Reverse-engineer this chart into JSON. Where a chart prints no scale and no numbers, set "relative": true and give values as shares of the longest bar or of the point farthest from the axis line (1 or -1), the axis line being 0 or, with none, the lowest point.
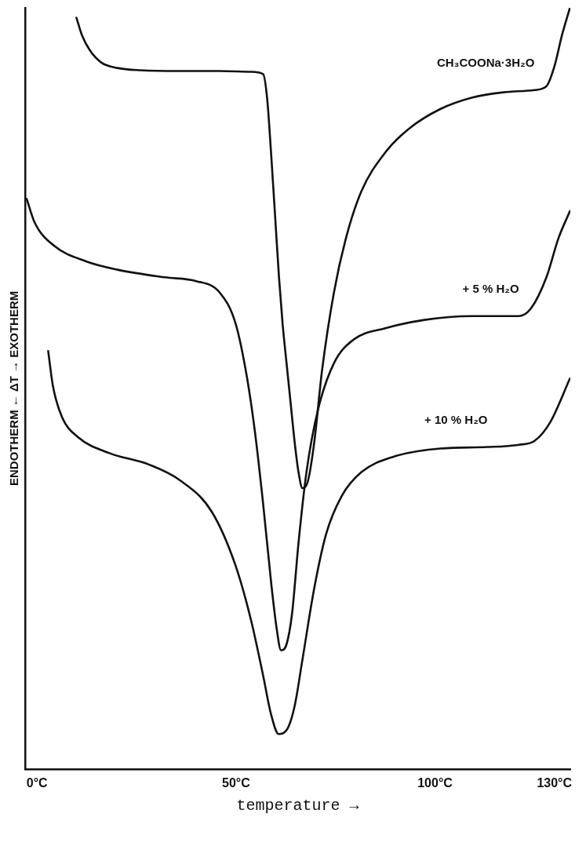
{
  "chart_data": {
    "type": "line",
    "relative": true,
    "xlabel": "temperature →",
    "ylabel": "ENDOTHERM ← ΔT → EXOTHERM",
    "xlim": [
      -3,
      134
    ],
    "xticks": [
      {
        "value": 0,
        "label": "0°C"
      },
      {
        "value": 50,
        "label": "50°C"
      },
      {
        "value": 100,
        "label": "100°C"
      },
      {
        "value": 130,
        "label": "130°C"
      }
    ],
    "grid": false,
    "legend": false,
    "marker": "none",
    "line_style": "solid",
    "series": [
      {
        "name": "CH₃COONa·3H₂O",
        "color": "#111111",
        "x": [
          9.9,
          11.3,
          13.3,
          16.2,
          20.2,
          26.1,
          36.0,
          45.9,
          53.8,
          56.8,
          57.8,
          58.8,
          59.8,
          60.8,
          61.7,
          62.7,
          63.7,
          64.7,
          65.7,
          66.7,
          68.1,
          69.7,
          71.6,
          74.6,
          77.6,
          81.5,
          87.5,
          93.4,
          101.3,
          109.2,
          117.2,
          125.0,
          128.0,
          130.0,
          131.9,
          133.9
        ],
        "values": [
          0.987,
          0.964,
          0.944,
          0.928,
          0.921,
          0.918,
          0.917,
          0.917,
          0.916,
          0.913,
          0.882,
          0.81,
          0.728,
          0.646,
          0.585,
          0.533,
          0.482,
          0.431,
          0.39,
          0.369,
          0.379,
          0.431,
          0.523,
          0.626,
          0.697,
          0.759,
          0.81,
          0.841,
          0.867,
          0.882,
          0.889,
          0.892,
          0.897,
          0.923,
          0.964,
          1
        ]
      },
      {
        "name": "+ 5 % H₂O",
        "color": "#111111",
        "x": [
          -2.6,
          -0.6,
          4.4,
          12.3,
          20.2,
          32.1,
          40.0,
          45.9,
          49.9,
          52.8,
          54.8,
          56.8,
          58.8,
          60.2,
          61.3,
          62.7,
          64.1,
          65.7,
          67.7,
          70.6,
          74.6,
          79.5,
          87.5,
          97.3,
          109.2,
          121.1,
          124.1,
          128.0,
          131.0,
          133.9
        ],
        "values": [
          0.749,
          0.718,
          0.687,
          0.667,
          0.656,
          0.646,
          0.641,
          0.626,
          0.585,
          0.513,
          0.441,
          0.349,
          0.246,
          0.185,
          0.156,
          0.164,
          0.205,
          0.297,
          0.39,
          0.472,
          0.533,
          0.564,
          0.579,
          0.59,
          0.595,
          0.595,
          0.605,
          0.646,
          0.697,
          0.733
        ]
      },
      {
        "name": "+ 10 % H₂O",
        "color": "#111111",
        "x": [
          2.8,
          4.0,
          6.3,
          10.3,
          18.2,
          28.1,
          36.0,
          43.9,
          49.9,
          53.8,
          56.8,
          58.8,
          60.7,
          62.7,
          64.7,
          66.7,
          69.6,
          72.6,
          76.6,
          81.5,
          89.4,
          101.3,
          113.2,
          121.1,
          125.0,
          129.0,
          133.9
        ],
        "values": [
          0.549,
          0.503,
          0.462,
          0.436,
          0.415,
          0.4,
          0.379,
          0.338,
          0.267,
          0.195,
          0.123,
          0.072,
          0.046,
          0.051,
          0.082,
          0.144,
          0.236,
          0.308,
          0.359,
          0.39,
          0.41,
          0.421,
          0.423,
          0.426,
          0.431,
          0.456,
          0.513
        ]
      }
    ]
  }
}
